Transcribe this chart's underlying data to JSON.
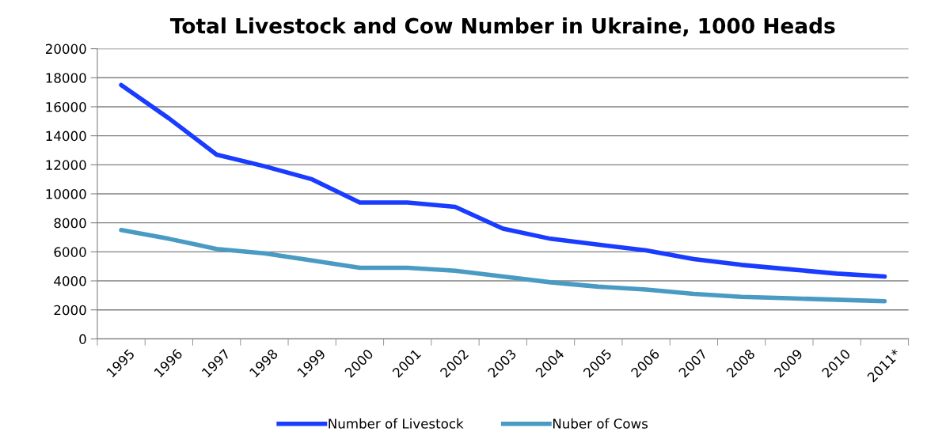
{
  "chart_data": {
    "type": "line",
    "title": "Total Livestock and Cow Number in Ukraine, 1000 Heads",
    "categories": [
      "1995",
      "1996",
      "1997",
      "1998",
      "1999",
      "2000",
      "2001",
      "2002",
      "2003",
      "2004",
      "2005",
      "2006",
      "2007",
      "2008",
      "2009",
      "2010",
      "2011*"
    ],
    "series": [
      {
        "name": "Number of Livestock",
        "color": "#1a3cff",
        "values": [
          17500,
          15200,
          12700,
          11900,
          11000,
          9400,
          9400,
          9100,
          7600,
          6900,
          6500,
          6100,
          5500,
          5100,
          4800,
          4500,
          4300
        ]
      },
      {
        "name": "Nuber of Cows",
        "color": "#4a9bc4",
        "values": [
          7500,
          6900,
          6200,
          5900,
          5400,
          4900,
          4900,
          4700,
          4300,
          3900,
          3600,
          3400,
          3100,
          2900,
          2800,
          2700,
          2600
        ]
      }
    ],
    "ylim": [
      0,
      20000
    ],
    "yticks": [
      0,
      2000,
      4000,
      6000,
      8000,
      10000,
      12000,
      14000,
      16000,
      18000,
      20000
    ],
    "grid": "y",
    "legend": "bottom",
    "marker": "none",
    "line_style": "solid"
  }
}
